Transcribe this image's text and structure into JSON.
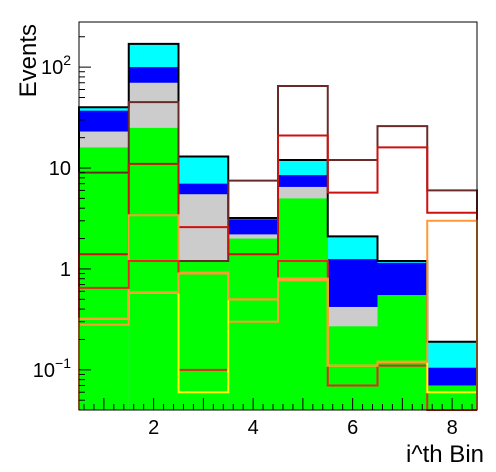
{
  "chart_data": {
    "type": "bar",
    "style": "stacked-step-histogram",
    "xlabel": "i^th Bin",
    "ylabel": "Events",
    "xlim": [
      0.5,
      8.5
    ],
    "ylim": [
      0.04,
      280
    ],
    "yscale": "log",
    "grid": false,
    "legend": "none",
    "x_ticks": [
      {
        "value": 2,
        "label": "2"
      },
      {
        "value": 4,
        "label": "4"
      },
      {
        "value": 6,
        "label": "6"
      },
      {
        "value": 8,
        "label": "8"
      }
    ],
    "y_ticks": [
      {
        "value": 0.1,
        "base": "10",
        "exp": "−1"
      },
      {
        "value": 1,
        "label": "1"
      },
      {
        "value": 10,
        "label": "10"
      },
      {
        "value": 100,
        "base": "10",
        "exp": "2"
      }
    ],
    "bin_edges": [
      0.5,
      1.5,
      2.5,
      3.5,
      4.5,
      5.5,
      6.5,
      7.5,
      8.5
    ],
    "stack_tops": [
      {
        "color": "#00ffff",
        "values": [
          40,
          170,
          13,
          3.2,
          12,
          2.1,
          1.2,
          0.19
        ]
      },
      {
        "color": "#0000ff",
        "values": [
          37,
          100,
          7,
          3.1,
          8.5,
          1.25,
          1.15,
          0.105
        ]
      },
      {
        "color": "#cccccc",
        "values": [
          23,
          70,
          5.5,
          2.2,
          6.5,
          0.42,
          0.55,
          0.07
        ]
      },
      {
        "color": "#00ff00",
        "values": [
          16,
          25,
          1.2,
          2.0,
          5.0,
          0.27,
          0.55,
          0.07
        ]
      }
    ],
    "total_outline": {
      "color": "#000000",
      "values": [
        40,
        170,
        13,
        3.2,
        12,
        2.1,
        1.2,
        0.19
      ]
    },
    "overlays": [
      {
        "color": "#6b2a2a",
        "values": [
          9,
          45,
          1.2,
          7.5,
          65,
          12,
          26,
          6
        ]
      },
      {
        "color": "#cc1111",
        "values": [
          1.4,
          11,
          2.6,
          1.4,
          21,
          5.7,
          16,
          3.6
        ]
      },
      {
        "color": "#ff9933",
        "values": [
          0.28,
          3.4,
          0.92,
          0.3,
          0.77,
          0.11,
          0.12,
          0.06
        ]
      },
      {
        "color": "#ee2222",
        "values": [
          0.65,
          1.2,
          0.1,
          0.5,
          1.2,
          0.07,
          0.11,
          0.04
        ]
      },
      {
        "color": "#ffff00",
        "values": [
          0.32,
          0.58,
          0.06,
          0.5,
          0.8,
          0.11,
          0.12,
          0.06
        ]
      },
      {
        "color": "#ff9933",
        "values": [
          0.32,
          0.58,
          0.9,
          0.5,
          0.8,
          0.11,
          0.12,
          3.0
        ]
      }
    ]
  }
}
